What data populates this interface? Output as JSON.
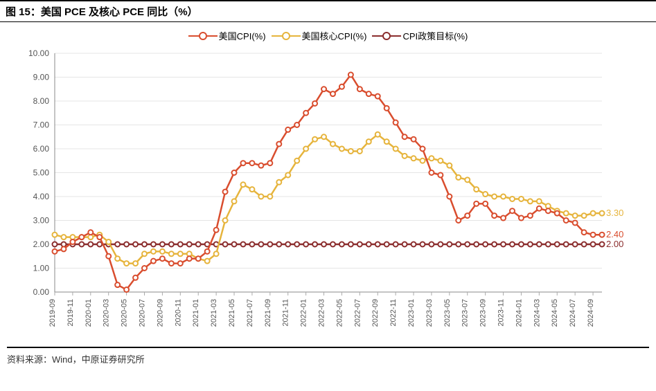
{
  "title_prefix": "图 15：",
  "title": "美国 PCE 及核心 PCE 同比（%）",
  "source_label": "资料来源：",
  "source_value": "Wind，中原证券研究所",
  "colors": {
    "cpi": "#d94d2e",
    "core": "#e6b43c",
    "target": "#8b2d2d",
    "grid": "#e5e5e5",
    "axis": "#888888",
    "text": "#555555",
    "bg": "#ffffff"
  },
  "legend": {
    "cpi": "美国CPI(%)",
    "core": "美国核心CPI(%)",
    "target": "CPI政策目标(%)"
  },
  "chart": {
    "type": "line",
    "y_min": 0,
    "y_max": 10,
    "y_step": 1,
    "y_format": "fixed2",
    "marker_radius": 3.5,
    "line_width": 2.5,
    "end_labels": {
      "core": "3.30",
      "cpi": "2.40",
      "target": "2.00"
    }
  },
  "x_categories": [
    "2019-09",
    "2019-10",
    "2019-11",
    "2019-12",
    "2020-01",
    "2020-02",
    "2020-03",
    "2020-04",
    "2020-05",
    "2020-06",
    "2020-07",
    "2020-08",
    "2020-09",
    "2020-10",
    "2020-11",
    "2020-12",
    "2021-01",
    "2021-02",
    "2021-03",
    "2021-04",
    "2021-05",
    "2021-06",
    "2021-07",
    "2021-08",
    "2021-09",
    "2021-10",
    "2021-11",
    "2021-12",
    "2022-01",
    "2022-02",
    "2022-03",
    "2022-04",
    "2022-05",
    "2022-06",
    "2022-07",
    "2022-08",
    "2022-09",
    "2022-10",
    "2022-11",
    "2022-12",
    "2023-01",
    "2023-02",
    "2023-03",
    "2023-04",
    "2023-05",
    "2023-06",
    "2023-07",
    "2023-08",
    "2023-09",
    "2023-10",
    "2023-11",
    "2023-12",
    "2024-01",
    "2024-02",
    "2024-03",
    "2024-04",
    "2024-05",
    "2024-06",
    "2024-07",
    "2024-08",
    "2024-09",
    "2024-10"
  ],
  "x_tick_labels": [
    "2019-09",
    "2019-11",
    "2020-01",
    "2020-03",
    "2020-05",
    "2020-07",
    "2020-09",
    "2020-11",
    "2021-01",
    "2021-03",
    "2021-05",
    "2021-07",
    "2021-09",
    "2021-11",
    "2022-01",
    "2022-03",
    "2022-05",
    "2022-07",
    "2022-09",
    "2022-11",
    "2023-01",
    "2023-03",
    "2023-05",
    "2023-07",
    "2023-09",
    "2023-11",
    "2024-01",
    "2024-03",
    "2024-05",
    "2024-07",
    "2024-09"
  ],
  "series": {
    "cpi": [
      1.7,
      1.8,
      2.1,
      2.3,
      2.5,
      2.3,
      1.5,
      0.3,
      0.1,
      0.6,
      1.0,
      1.3,
      1.4,
      1.2,
      1.2,
      1.4,
      1.4,
      1.7,
      2.6,
      4.2,
      5.0,
      5.4,
      5.4,
      5.3,
      5.4,
      6.2,
      6.8,
      7.0,
      7.5,
      7.9,
      8.5,
      8.3,
      8.6,
      9.1,
      8.5,
      8.3,
      8.2,
      7.7,
      7.1,
      6.5,
      6.4,
      6.0,
      5.0,
      4.9,
      4.0,
      3.0,
      3.2,
      3.7,
      3.7,
      3.2,
      3.1,
      3.4,
      3.1,
      3.2,
      3.5,
      3.4,
      3.3,
      3.0,
      2.9,
      2.5,
      2.4,
      2.4
    ],
    "core": [
      2.4,
      2.3,
      2.3,
      2.3,
      2.3,
      2.4,
      2.1,
      1.4,
      1.2,
      1.2,
      1.6,
      1.7,
      1.7,
      1.6,
      1.6,
      1.6,
      1.4,
      1.3,
      1.6,
      3.0,
      3.8,
      4.5,
      4.3,
      4.0,
      4.0,
      4.6,
      4.9,
      5.5,
      6.0,
      6.4,
      6.5,
      6.2,
      6.0,
      5.9,
      5.9,
      6.3,
      6.6,
      6.3,
      6.0,
      5.7,
      5.6,
      5.5,
      5.6,
      5.5,
      5.3,
      4.8,
      4.7,
      4.3,
      4.1,
      4.0,
      4.0,
      3.9,
      3.9,
      3.8,
      3.8,
      3.6,
      3.4,
      3.3,
      3.2,
      3.2,
      3.3,
      3.3
    ],
    "target": [
      2.0,
      2.0,
      2.0,
      2.0,
      2.0,
      2.0,
      2.0,
      2.0,
      2.0,
      2.0,
      2.0,
      2.0,
      2.0,
      2.0,
      2.0,
      2.0,
      2.0,
      2.0,
      2.0,
      2.0,
      2.0,
      2.0,
      2.0,
      2.0,
      2.0,
      2.0,
      2.0,
      2.0,
      2.0,
      2.0,
      2.0,
      2.0,
      2.0,
      2.0,
      2.0,
      2.0,
      2.0,
      2.0,
      2.0,
      2.0,
      2.0,
      2.0,
      2.0,
      2.0,
      2.0,
      2.0,
      2.0,
      2.0,
      2.0,
      2.0,
      2.0,
      2.0,
      2.0,
      2.0,
      2.0,
      2.0,
      2.0,
      2.0,
      2.0,
      2.0,
      2.0,
      2.0
    ]
  }
}
